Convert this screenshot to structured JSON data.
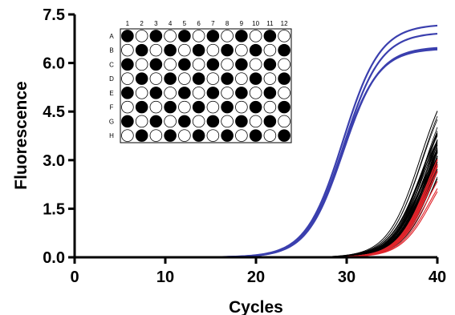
{
  "chart_data": {
    "type": "line",
    "title": "",
    "xlabel": "Cycles",
    "ylabel": "Fluorescence",
    "xlim": [
      0,
      40
    ],
    "ylim": [
      0,
      7.5
    ],
    "x_ticks": [
      "0",
      "10",
      "20",
      "30",
      "40"
    ],
    "y_ticks": [
      "0.0",
      "1.5",
      "3.0",
      "4.5",
      "6.0",
      "7.5"
    ],
    "grid": false,
    "series": [
      {
        "color": "#3a3fae",
        "width": 2.2,
        "count": 1,
        "model": {
          "plateau": 7.2,
          "midpoint": 29.6,
          "slope": 2.05,
          "jitter": 0
        }
      },
      {
        "color": "#3a3fae",
        "width": 2.2,
        "count": 1,
        "model": {
          "plateau": 6.95,
          "midpoint": 29.7,
          "slope": 2.05,
          "jitter": 0
        }
      },
      {
        "color": "#3a3fae",
        "width": 2.2,
        "count": 1,
        "model": {
          "plateau": 6.5,
          "midpoint": 29.6,
          "slope": 2.0,
          "jitter": 0
        }
      },
      {
        "color": "#3a3fae",
        "width": 2.2,
        "count": 1,
        "model": {
          "plateau": 6.45,
          "midpoint": 29.5,
          "slope": 2.0,
          "jitter": 0
        }
      },
      {
        "color": "#000000",
        "width": 0.8,
        "count": 60,
        "model": {
          "plateau": 5.2,
          "midpoint": 39.0,
          "slope": 1.8,
          "jitter": 0.9
        }
      },
      {
        "color": "#e0242b",
        "width": 1.1,
        "count": 12,
        "model": {
          "plateau": 4.0,
          "midpoint": 39.2,
          "slope": 1.7,
          "jitter": 0.25
        }
      }
    ],
    "inset": {
      "columns": [
        "1",
        "2",
        "3",
        "4",
        "5",
        "6",
        "7",
        "8",
        "9",
        "10",
        "11",
        "12"
      ],
      "rows": [
        "A",
        "B",
        "C",
        "D",
        "E",
        "F",
        "G",
        "H"
      ],
      "filled_when_row_plus_col_even": true
    }
  }
}
